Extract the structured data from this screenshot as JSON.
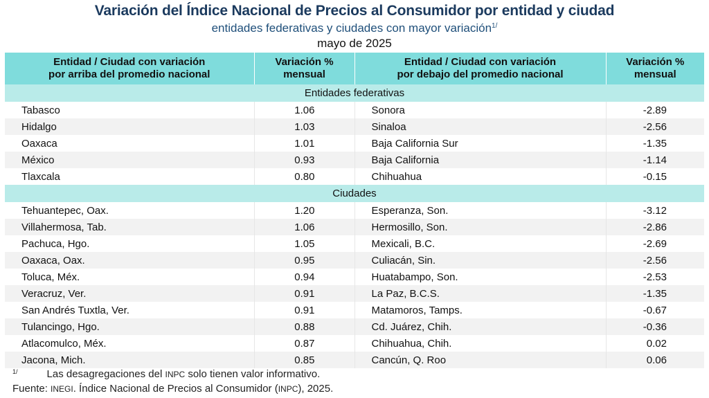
{
  "header": {
    "title": "Variación del Índice Nacional de Precios al Consumidor por entidad y ciudad",
    "subtitle": "entidades federativas y ciudades con mayor variación",
    "subtitle_note": "1/",
    "period": "mayo de 2025"
  },
  "table": {
    "columns": [
      "Entidad / Ciudad con variación\npor arriba del promedio nacional",
      "Variación %\nmensual",
      "Entidad / Ciudad con variación\npor debajo del promedio nacional",
      "Variación %\nmensual"
    ],
    "sections": [
      {
        "title": "Entidades federativas",
        "rows": [
          [
            "Tabasco",
            "1.06",
            "Sonora",
            "-2.89"
          ],
          [
            "Hidalgo",
            "1.03",
            "Sinaloa",
            "-2.56"
          ],
          [
            "Oaxaca",
            "1.01",
            "Baja California Sur",
            "-1.35"
          ],
          [
            "México",
            "0.93",
            "Baja California",
            "-1.14"
          ],
          [
            "Tlaxcala",
            "0.80",
            "Chihuahua",
            "-0.15"
          ]
        ]
      },
      {
        "title": "Ciudades",
        "rows": [
          [
            "Tehuantepec, Oax.",
            "1.20",
            "Esperanza, Son.",
            "-3.12"
          ],
          [
            "Villahermosa, Tab.",
            "1.06",
            "Hermosillo, Son.",
            "-2.86"
          ],
          [
            "Pachuca, Hgo.",
            "1.05",
            "Mexicali, B.C.",
            "-2.69"
          ],
          [
            "Oaxaca, Oax.",
            "0.95",
            "Culiacán, Sin.",
            "-2.56"
          ],
          [
            "Toluca, Méx.",
            "0.94",
            "Huatabampo, Son.",
            "-2.53"
          ],
          [
            "Veracruz, Ver.",
            "0.91",
            "La Paz, B.C.S.",
            "-1.35"
          ],
          [
            "San Andrés Tuxtla, Ver.",
            "0.91",
            "Matamoros, Tamps.",
            "-0.67"
          ],
          [
            "Tulancingo, Hgo.",
            "0.88",
            "Cd. Juárez, Chih.",
            "-0.36"
          ],
          [
            "Atlacomulco, Méx.",
            "0.87",
            "Chihuahua, Chih.",
            "0.02"
          ],
          [
            "Jacona, Mich.",
            "0.85",
            "Cancún, Q. Roo",
            "0.06"
          ]
        ]
      }
    ]
  },
  "footer": {
    "note_mark": "1/",
    "note_a": "Las desagregaciones del ",
    "note_abbr": "INPC",
    "note_b": " solo tienen valor informativo.",
    "source_label": "Fuente: ",
    "source_org": "INEGI",
    "source_a": ". Índice Nacional de Precios al Consumidor (",
    "source_abbr": "INPC",
    "source_b": "), 2025."
  },
  "colors": {
    "title": "#1b3a5e",
    "header_bg": "#7fdcdc",
    "section_bg": "#b9ebe9",
    "alt_row": "#f2f2f2"
  }
}
